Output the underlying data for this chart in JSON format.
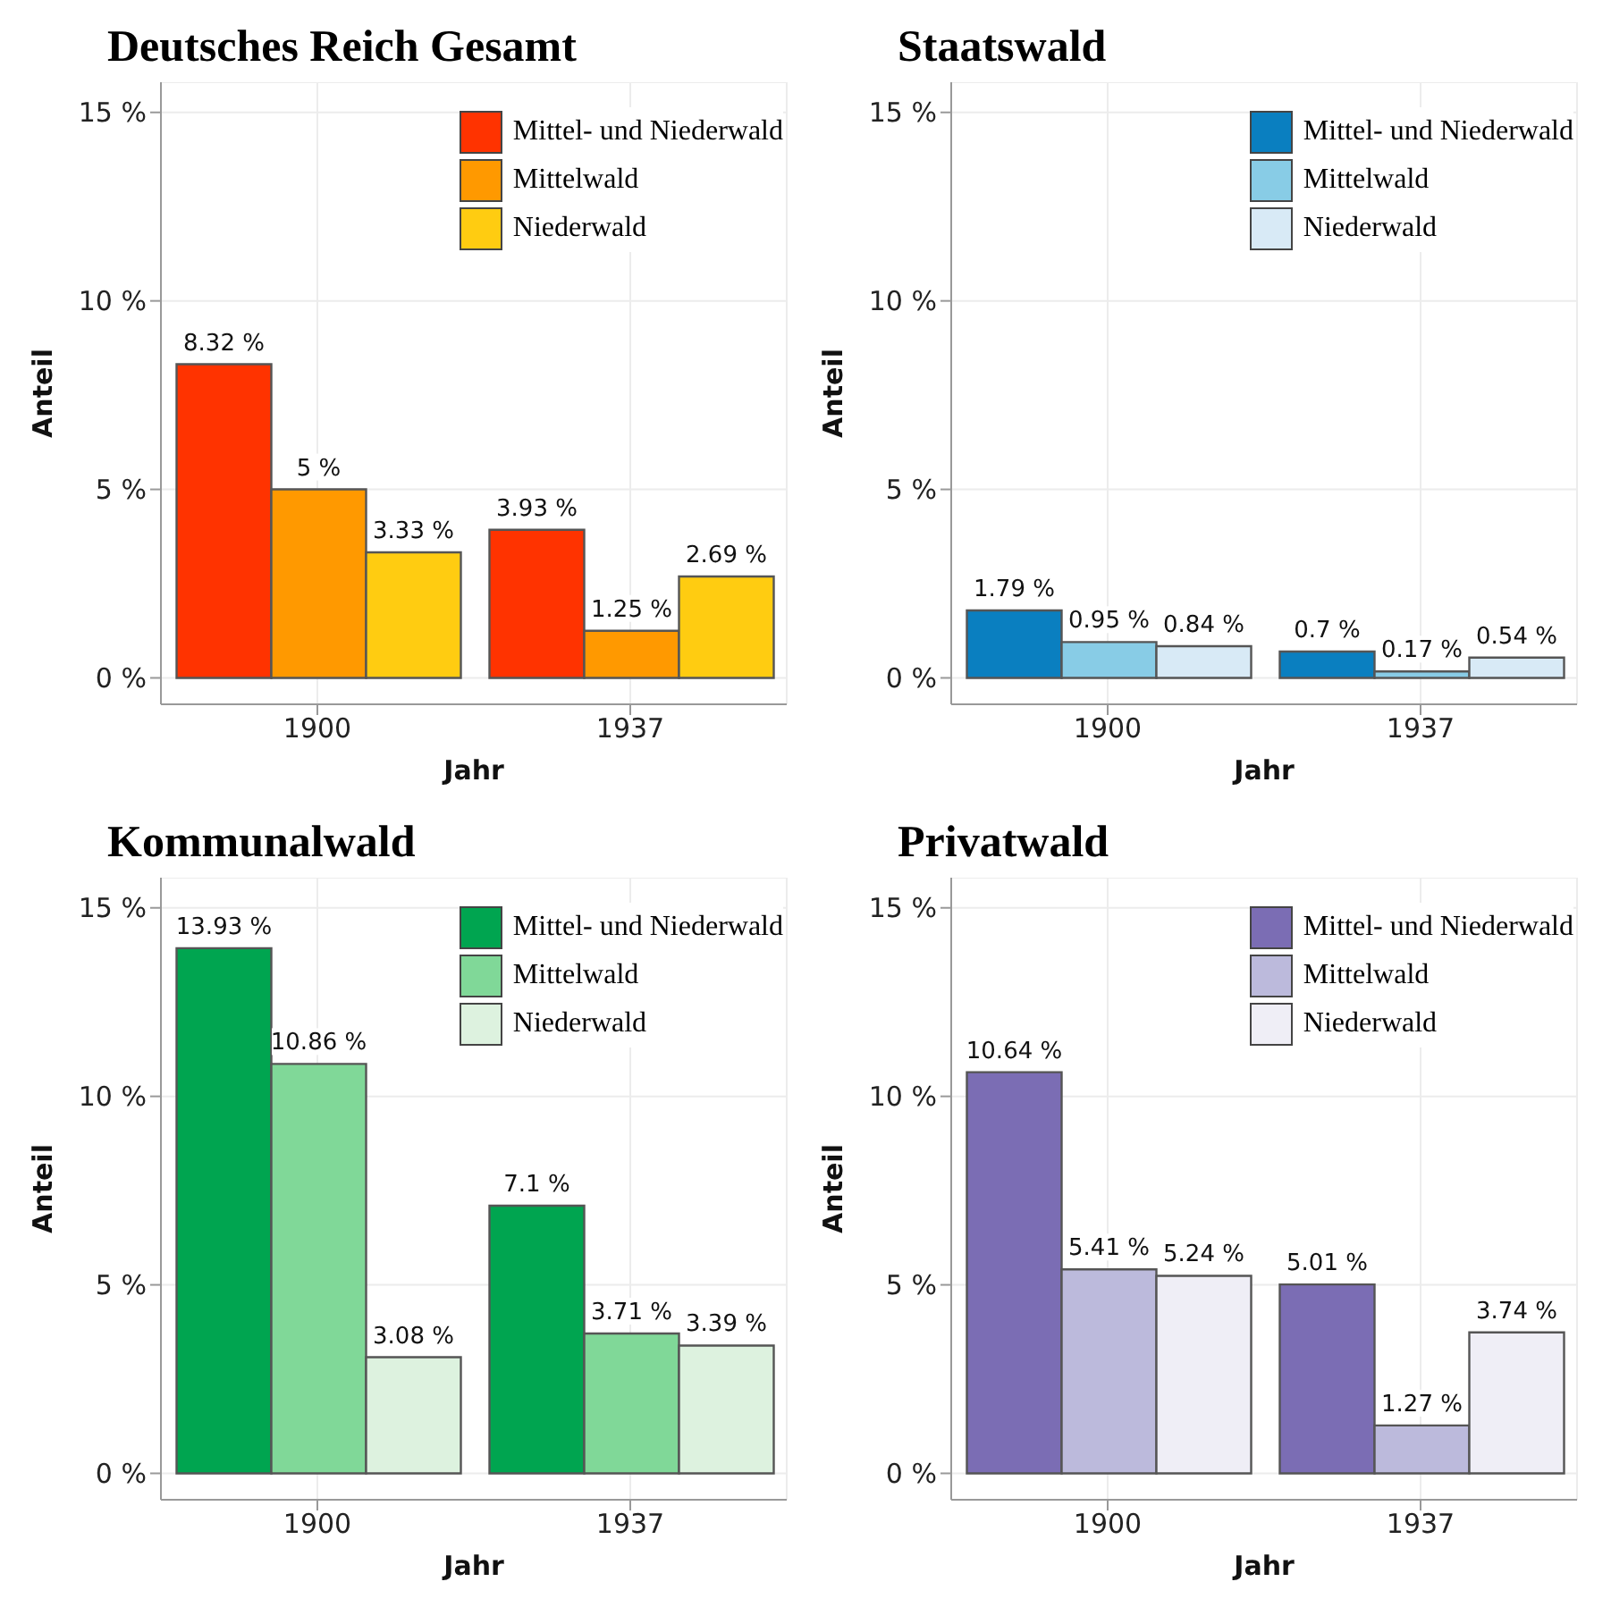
{
  "chart_data": [
    {
      "type": "bar",
      "title": "Deutsches Reich Gesamt",
      "xlabel": "Jahr",
      "ylabel": "Anteil",
      "categories": [
        "1900",
        "1937"
      ],
      "ylim": [
        -0.7,
        15.8
      ],
      "yticks": [
        {
          "value": 0,
          "label": "0 %"
        },
        {
          "value": 5,
          "label": "5 %"
        },
        {
          "value": 10,
          "label": "10 %"
        },
        {
          "value": 15,
          "label": "15 %"
        }
      ],
      "grid": true,
      "legend": "top right",
      "series": [
        {
          "name": "Mittel- und Niederwald",
          "color": "#ff3300",
          "values": [
            8.32,
            3.93
          ],
          "value_labels": [
            "8.32 %",
            "3.93 %"
          ]
        },
        {
          "name": "Mittelwald",
          "color": "#ff9900",
          "values": [
            5,
            1.25
          ],
          "value_labels": [
            "5 %",
            "1.25 %"
          ]
        },
        {
          "name": "Niederwald",
          "color": "#ffcc11",
          "values": [
            3.33,
            2.69
          ],
          "value_labels": [
            "3.33 %",
            "2.69 %"
          ]
        }
      ]
    },
    {
      "type": "bar",
      "title": "Staatswald",
      "xlabel": "Jahr",
      "ylabel": "Anteil",
      "categories": [
        "1900",
        "1937"
      ],
      "ylim": [
        -0.7,
        15.8
      ],
      "yticks": [
        {
          "value": 0,
          "label": "0 %"
        },
        {
          "value": 5,
          "label": "5 %"
        },
        {
          "value": 10,
          "label": "10 %"
        },
        {
          "value": 15,
          "label": "15 %"
        }
      ],
      "grid": true,
      "legend": "top right",
      "series": [
        {
          "name": "Mittel- und Niederwald",
          "color": "#0a7fc0",
          "values": [
            1.79,
            0.7
          ],
          "value_labels": [
            "1.79 %",
            "0.7 %"
          ]
        },
        {
          "name": "Mittelwald",
          "color": "#88cce6",
          "values": [
            0.95,
            0.17
          ],
          "value_labels": [
            "0.95 %",
            "0.17 %"
          ]
        },
        {
          "name": "Niederwald",
          "color": "#d8eaf6",
          "values": [
            0.84,
            0.54
          ],
          "value_labels": [
            "0.84 %",
            "0.54 %"
          ]
        }
      ]
    },
    {
      "type": "bar",
      "title": "Kommunalwald",
      "xlabel": "Jahr",
      "ylabel": "Anteil",
      "categories": [
        "1900",
        "1937"
      ],
      "ylim": [
        -0.7,
        15.8
      ],
      "yticks": [
        {
          "value": 0,
          "label": "0 %"
        },
        {
          "value": 5,
          "label": "5 %"
        },
        {
          "value": 10,
          "label": "10 %"
        },
        {
          "value": 15,
          "label": "15 %"
        }
      ],
      "grid": true,
      "legend": "top right",
      "series": [
        {
          "name": "Mittel- und Niederwald",
          "color": "#00a550",
          "values": [
            13.93,
            7.1
          ],
          "value_labels": [
            "13.93 %",
            "7.1 %"
          ]
        },
        {
          "name": "Mittelwald",
          "color": "#80d898",
          "values": [
            10.86,
            3.71
          ],
          "value_labels": [
            "10.86 %",
            "3.71 %"
          ]
        },
        {
          "name": "Niederwald",
          "color": "#ddf2df",
          "values": [
            3.08,
            3.39
          ],
          "value_labels": [
            "3.08 %",
            "3.39 %"
          ]
        }
      ]
    },
    {
      "type": "bar",
      "title": "Privatwald",
      "xlabel": "Jahr",
      "ylabel": "Anteil",
      "categories": [
        "1900",
        "1937"
      ],
      "ylim": [
        -0.7,
        15.8
      ],
      "yticks": [
        {
          "value": 0,
          "label": "0 %"
        },
        {
          "value": 5,
          "label": "5 %"
        },
        {
          "value": 10,
          "label": "10 %"
        },
        {
          "value": 15,
          "label": "15 %"
        }
      ],
      "grid": true,
      "legend": "top right",
      "series": [
        {
          "name": "Mittel- und Niederwald",
          "color": "#7b6db4",
          "values": [
            10.64,
            5.01
          ],
          "value_labels": [
            "10.64 %",
            "5.01 %"
          ]
        },
        {
          "name": "Mittelwald",
          "color": "#bcbadc",
          "values": [
            5.41,
            1.27
          ],
          "value_labels": [
            "5.41 %",
            "1.27 %"
          ]
        },
        {
          "name": "Niederwald",
          "color": "#efeef6",
          "values": [
            5.24,
            3.74
          ],
          "value_labels": [
            "5.24 %",
            "3.74 %"
          ]
        }
      ]
    }
  ]
}
